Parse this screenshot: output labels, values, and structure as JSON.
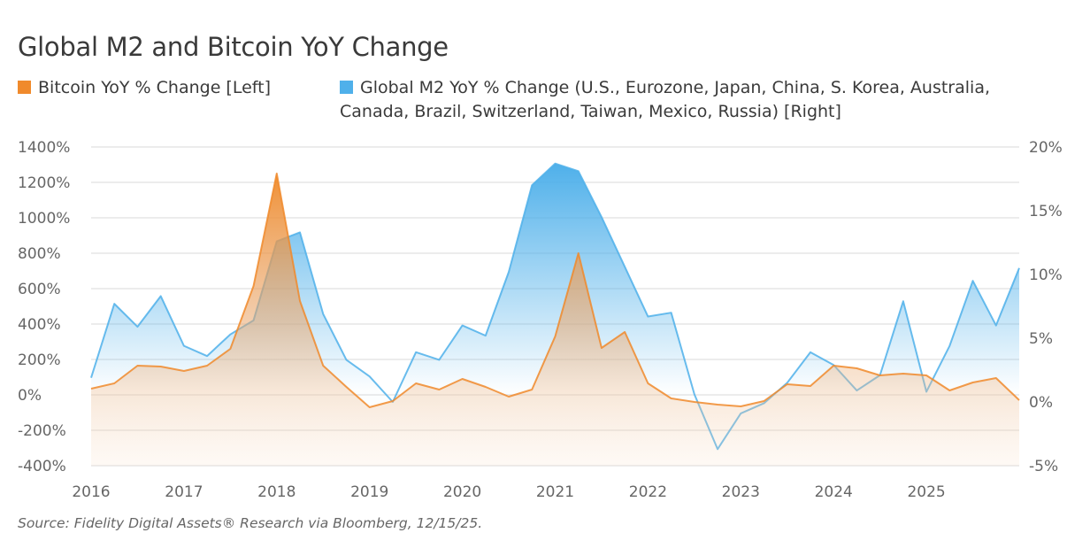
{
  "title": "Global M2 and Bitcoin YoY Change",
  "source": "Source: Fidelity Digital Assets® Research via Bloomberg, 12/15/25.",
  "chart_data": {
    "type": "area",
    "title": "Global M2 and Bitcoin YoY Change",
    "legend_position": "top-left",
    "grid": true,
    "x_ticks": [
      "2016",
      "2017",
      "2018",
      "2019",
      "2020",
      "2021",
      "2022",
      "2023",
      "2024",
      "2025"
    ],
    "xlim": [
      2016,
      2026
    ],
    "y_left": {
      "ticks": [
        "1400%",
        "1200%",
        "1000%",
        "800%",
        "600%",
        "400%",
        "200%",
        "0%",
        "-200%",
        "-400%"
      ],
      "ylim": [
        -400,
        1400
      ]
    },
    "y_right": {
      "ticks": [
        "20%",
        "15%",
        "10%",
        "5%",
        "0%",
        "-5%"
      ],
      "ylim": [
        -5,
        20
      ]
    },
    "x": [
      2016,
      2016.25,
      2016.5,
      2016.75,
      2017,
      2017.25,
      2017.5,
      2017.75,
      2018,
      2018.25,
      2018.5,
      2018.75,
      2019,
      2019.25,
      2019.5,
      2019.75,
      2020,
      2020.25,
      2020.5,
      2020.75,
      2021,
      2021.25,
      2021.5,
      2021.75,
      2022,
      2022.25,
      2022.5,
      2022.75,
      2023,
      2023.25,
      2023.5,
      2023.75,
      2024,
      2024.25,
      2024.5,
      2024.75,
      2025,
      2025.25,
      2025.5,
      2025.75,
      2026
    ],
    "series": [
      {
        "name": "Bitcoin YoY % Change [Left]",
        "axis": "left",
        "color": "#f08a2c",
        "values": [
          35,
          65,
          165,
          160,
          135,
          165,
          260,
          615,
          1250,
          530,
          165,
          45,
          -70,
          -35,
          65,
          30,
          90,
          45,
          -10,
          30,
          330,
          800,
          265,
          355,
          65,
          -20,
          -40,
          -55,
          -65,
          -35,
          60,
          50,
          165,
          150,
          110,
          120,
          110,
          25,
          70,
          95,
          -30
        ]
      },
      {
        "name": "Global M2 YoY % Change (U.S., Eurozone, Japan, China, S. Korea, Australia, Canada, Brazil, Switzerland, Taiwan, Mexico, Russia) [Right]",
        "axis": "right",
        "color": "#4fb0ea",
        "values": [
          1.9,
          7.7,
          5.9,
          8.3,
          4.4,
          3.6,
          5.3,
          6.4,
          12.6,
          13.3,
          6.9,
          3.3,
          2.0,
          0.0,
          3.9,
          3.3,
          6.0,
          5.2,
          10.2,
          17.0,
          18.7,
          18.1,
          14.5,
          10.6,
          6.7,
          7.0,
          0.6,
          -3.7,
          -0.9,
          -0.1,
          1.5,
          3.9,
          2.9,
          0.9,
          2.1,
          7.9,
          0.8,
          4.4,
          9.5,
          6.0,
          10.5
        ]
      }
    ]
  }
}
